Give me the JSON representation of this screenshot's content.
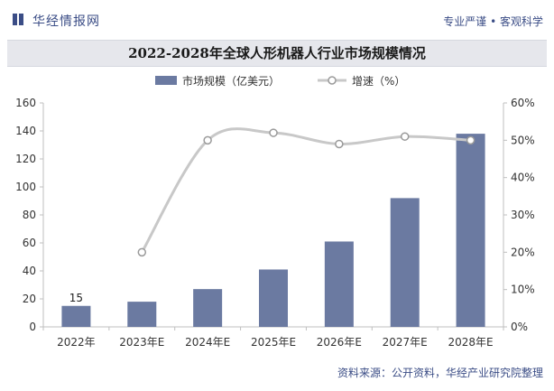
{
  "header": {
    "brand": "华经情报网",
    "tagline": "专业严谨 • 客观科学"
  },
  "source": "资料来源：公开资料，华经产业研究院整理",
  "colors": {
    "bar": "#6b7aa1",
    "line": "#c8c8c8",
    "accent": "#3b4d86"
  },
  "chart_data": {
    "type": "bar",
    "title": "2022-2028年全球人形机器人行业市场规模情况",
    "categories": [
      "2022年",
      "2023年E",
      "2024年E",
      "2025年E",
      "2026年E",
      "2027年E",
      "2028年E"
    ],
    "series": [
      {
        "name": "市场规模（亿美元）",
        "type": "bar",
        "axis": "left",
        "values": [
          15,
          18,
          27,
          41,
          61,
          92,
          138
        ]
      },
      {
        "name": "增速（%）",
        "type": "line",
        "axis": "right",
        "values": [
          null,
          20,
          50,
          52,
          49,
          51,
          50
        ]
      }
    ],
    "data_labels": {
      "0": "15"
    },
    "y_left": {
      "ylim": [
        0,
        160
      ],
      "ticks": [
        "0",
        "20",
        "40",
        "60",
        "80",
        "100",
        "120",
        "140",
        "160"
      ]
    },
    "y_right": {
      "ylim": [
        0,
        60
      ],
      "ticks": [
        "0%",
        "10%",
        "20%",
        "30%",
        "40%",
        "50%",
        "60%"
      ]
    },
    "legend": "top-center",
    "grid": false
  }
}
